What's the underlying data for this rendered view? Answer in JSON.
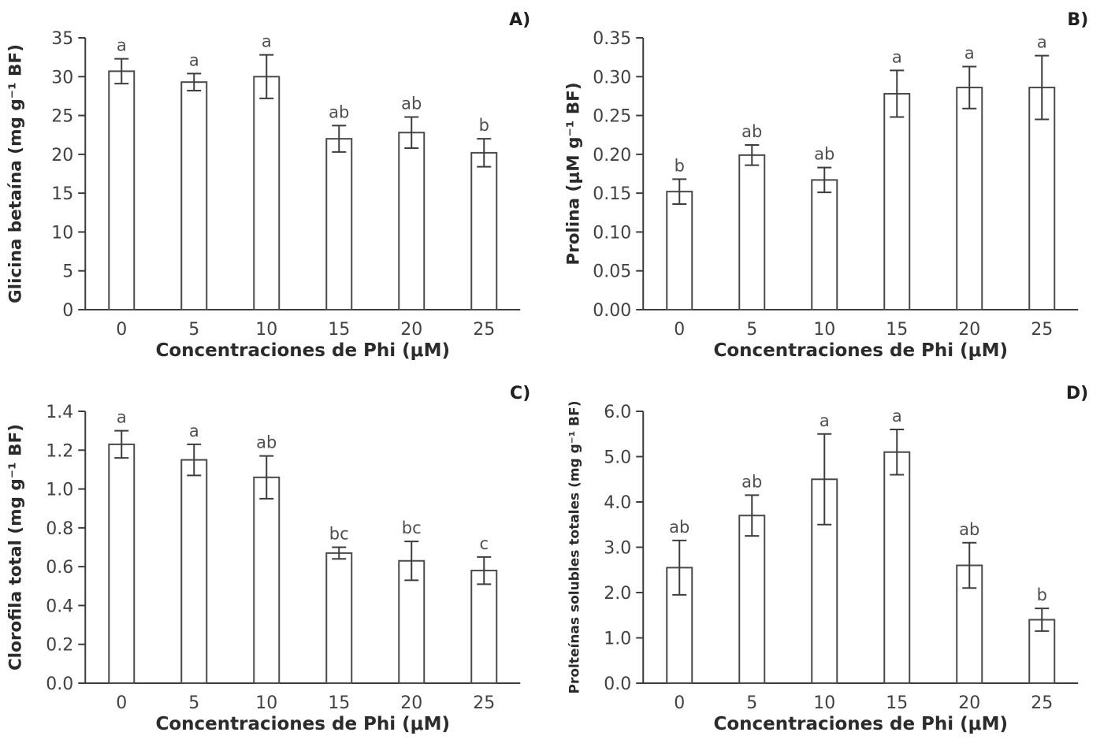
{
  "figure": {
    "background": "#ffffff",
    "ink_color": "#3d3d3d",
    "tick_text_color": "#424242",
    "letter_color": "#4f4f4f",
    "label_color": "#2b2b2b",
    "bar_fill": "#ffffff",
    "bar_stroke": "#4a4a4a"
  },
  "chart_data": [
    {
      "type": "bar",
      "panel_label": "A)",
      "ylabel": "Glicina betaína (mg g⁻¹ BF)",
      "xlabel": "Concentraciones de Phi (μM)",
      "categories": [
        "0",
        "5",
        "10",
        "15",
        "20",
        "25"
      ],
      "values": [
        30.7,
        29.3,
        30.0,
        22.0,
        22.8,
        20.2
      ],
      "errors": [
        1.6,
        1.1,
        2.8,
        1.7,
        2.0,
        1.8
      ],
      "sig_letters": [
        "a",
        "a",
        "a",
        "ab",
        "ab",
        "b"
      ],
      "ylim": [
        0,
        35
      ],
      "ytick_values": [
        0,
        5,
        10,
        15,
        20,
        25,
        30,
        35
      ],
      "ytick_labels": [
        "0",
        "5",
        "10",
        "15",
        "20",
        "25",
        "30",
        "35"
      ],
      "grid": false,
      "legend": false
    },
    {
      "type": "bar",
      "panel_label": "B)",
      "ylabel": "Prolina (μM g⁻¹ BF)",
      "xlabel": "Concentraciones de Phi (μM)",
      "categories": [
        "0",
        "5",
        "10",
        "15",
        "20",
        "25"
      ],
      "values": [
        0.152,
        0.199,
        0.167,
        0.278,
        0.286,
        0.286
      ],
      "errors": [
        0.016,
        0.013,
        0.016,
        0.03,
        0.027,
        0.041
      ],
      "sig_letters": [
        "b",
        "ab",
        "ab",
        "a",
        "a",
        "a"
      ],
      "ylim": [
        0,
        0.35
      ],
      "ytick_values": [
        0,
        0.05,
        0.1,
        0.15,
        0.2,
        0.25,
        0.3,
        0.35
      ],
      "ytick_labels": [
        "0.00",
        "0.05",
        "0.10",
        "0.15",
        "0.20",
        "0.25",
        "0.30",
        "0.35"
      ],
      "grid": false,
      "legend": false
    },
    {
      "type": "bar",
      "panel_label": "C)",
      "ylabel": "Clorofila total (mg g⁻¹ BF)",
      "xlabel": "Concentraciones de Phi (μM)",
      "categories": [
        "0",
        "5",
        "10",
        "15",
        "20",
        "25"
      ],
      "values": [
        1.23,
        1.15,
        1.06,
        0.67,
        0.63,
        0.58
      ],
      "errors": [
        0.07,
        0.08,
        0.11,
        0.03,
        0.1,
        0.07
      ],
      "sig_letters": [
        "a",
        "a",
        "ab",
        "bc",
        "bc",
        "c"
      ],
      "ylim": [
        0,
        1.4
      ],
      "ytick_values": [
        0,
        0.2,
        0.4,
        0.6,
        0.8,
        1.0,
        1.2,
        1.4
      ],
      "ytick_labels": [
        "0.0",
        "0.2",
        "0.4",
        "0.6",
        "0.8",
        "1.0",
        "1.2",
        "1.4"
      ],
      "grid": false,
      "legend": false
    },
    {
      "type": "bar",
      "panel_label": "D)",
      "ylabel": "Prolteínas solubles totales (mg g⁻¹ BF)",
      "xlabel": "Concentraciones de Phi (μM)",
      "categories": [
        "0",
        "5",
        "10",
        "15",
        "20",
        "25"
      ],
      "values": [
        2.55,
        3.7,
        4.5,
        5.1,
        2.6,
        1.4
      ],
      "errors": [
        0.6,
        0.45,
        1.0,
        0.5,
        0.5,
        0.25
      ],
      "sig_letters": [
        "ab",
        "ab",
        "a",
        "a",
        "ab",
        "b"
      ],
      "ylim": [
        0,
        6
      ],
      "ytick_values": [
        0,
        1,
        2,
        3,
        4,
        5,
        6
      ],
      "ytick_labels": [
        "0.0",
        "1.0",
        "2.0",
        "3.0",
        "4.0",
        "5.0",
        "6.0"
      ],
      "grid": false,
      "legend": false
    }
  ]
}
